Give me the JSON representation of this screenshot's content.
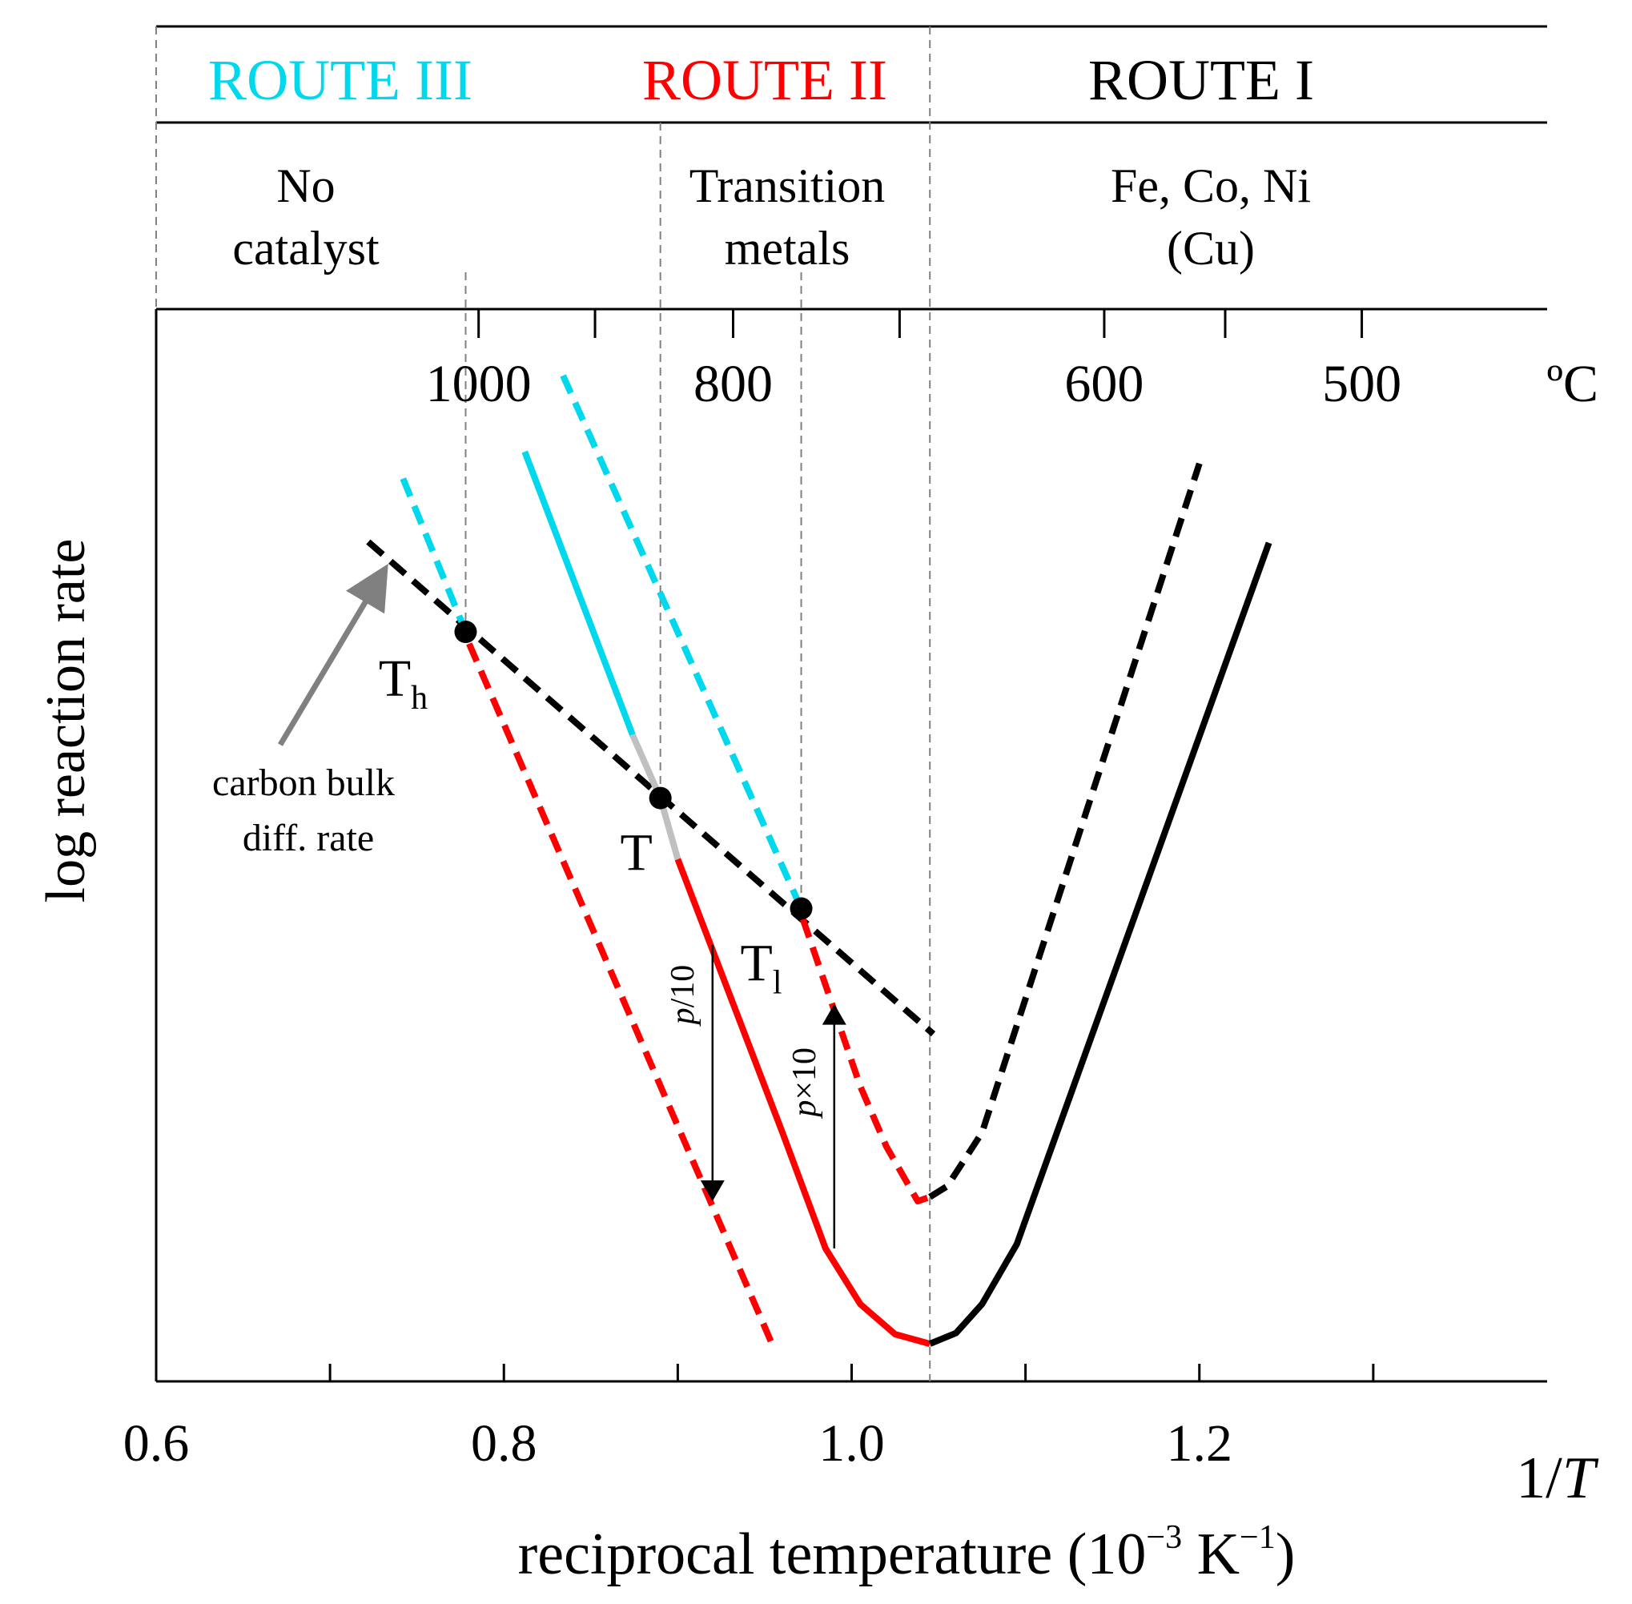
{
  "chart_data": {
    "type": "line",
    "ylabel": "log reaction rate",
    "xlabel": "reciprocal temperature (10",
    "xlabel_exp1": "−3",
    "xlabel_unit": " K",
    "xlabel_exp2": "−1",
    "xlabel_close": ")",
    "x_symbol_num": "1/",
    "x_symbol_var": "T",
    "xlim": [
      0.6,
      1.4
    ],
    "ylim": [
      0.0,
      1.0
    ],
    "x_ticks": [
      0.6,
      0.7,
      0.8,
      0.9,
      1.0,
      1.1,
      1.2,
      1.3
    ],
    "x_tick_labels": [
      {
        "value": 0.6,
        "label": "0.6"
      },
      {
        "value": 0.8,
        "label": "0.8"
      },
      {
        "value": 1.0,
        "label": "1.0"
      },
      {
        "value": 1.2,
        "label": "1.2"
      }
    ],
    "celsius_ticks": [
      1000,
      900,
      800,
      700,
      600,
      550,
      500
    ],
    "celsius_tick_labels": [
      {
        "celsius": 1000,
        "label": "1000"
      },
      {
        "celsius": 800,
        "label": "800"
      },
      {
        "celsius": 600,
        "label": "600"
      },
      {
        "celsius": 500,
        "label": "500"
      }
    ],
    "celsius_unit": "ºC",
    "routes": [
      {
        "label": "ROUTE III",
        "color": "#00d8ee",
        "from": 0.6,
        "to": 1.045
      },
      {
        "label": "ROUTE II",
        "color": "#ff0000",
        "from": 0.6,
        "to": 1.045
      },
      {
        "label": "ROUTE I",
        "color": "#000000",
        "from": 1.045,
        "to": 1.4
      }
    ],
    "regimes": [
      {
        "lines": [
          "No",
          "catalyst"
        ],
        "from": 0.6,
        "to": 0.89
      },
      {
        "lines": [
          "Transition",
          "metals"
        ],
        "from": 0.89,
        "to": 1.045
      },
      {
        "lines": [
          "Fe, Co, Ni",
          "(Cu)"
        ],
        "from": 1.045,
        "to": 1.4
      }
    ],
    "boundaries": [
      0.6,
      0.778,
      0.89,
      0.971,
      1.045
    ],
    "series": [
      {
        "name": "carbon bulk diffusion rate",
        "color": "#000000",
        "style": "dashed",
        "points": [
          [
            0.722,
            0.783
          ],
          [
            1.047,
            0.324
          ]
        ]
      },
      {
        "name": "route III, high",
        "color": "#00d8ee",
        "style": "dashed",
        "points": [
          [
            0.742,
            0.842
          ],
          [
            0.778,
            0.699
          ]
        ]
      },
      {
        "name": "route III, middle",
        "color": "#00d8ee",
        "style": "solid",
        "points": [
          [
            0.812,
            0.867
          ],
          [
            0.874,
            0.603
          ]
        ]
      },
      {
        "name": "route III, middle transition",
        "color": "#c0c0c0",
        "style": "solid",
        "points": [
          [
            0.874,
            0.603
          ],
          [
            0.89,
            0.544
          ]
        ]
      },
      {
        "name": "route III, low",
        "color": "#00d8ee",
        "style": "dashed",
        "points": [
          [
            0.834,
            0.938
          ],
          [
            0.971,
            0.441
          ]
        ]
      },
      {
        "name": "route II at p/10",
        "color": "#ff0000",
        "style": "dashed",
        "points": [
          [
            0.78,
            0.688
          ],
          [
            0.955,
            0.032
          ]
        ]
      },
      {
        "name": "route II transition",
        "color": "#c0c0c0",
        "style": "solid",
        "points": [
          [
            0.89,
            0.544
          ],
          [
            0.9,
            0.487
          ]
        ]
      },
      {
        "name": "route II",
        "color": "#ff0000",
        "style": "solid",
        "points": [
          [
            0.9,
            0.487
          ],
          [
            0.96,
            0.233
          ],
          [
            0.985,
            0.124
          ],
          [
            1.005,
            0.072
          ],
          [
            1.025,
            0.044
          ],
          [
            1.045,
            0.035
          ]
        ]
      },
      {
        "name": "route II at p×10",
        "color": "#ff0000",
        "style": "dashed",
        "points": [
          [
            0.972,
            0.431
          ],
          [
            1.005,
            0.275
          ],
          [
            1.02,
            0.219
          ],
          [
            1.038,
            0.168
          ],
          [
            1.045,
            0.172
          ]
        ]
      },
      {
        "name": "route I",
        "color": "#000000",
        "style": "solid",
        "points": [
          [
            1.045,
            0.035
          ],
          [
            1.06,
            0.045
          ],
          [
            1.075,
            0.072
          ],
          [
            1.095,
            0.128
          ],
          [
            1.24,
            0.782
          ]
        ]
      },
      {
        "name": "route I at p×10",
        "color": "#000000",
        "style": "dashed",
        "points": [
          [
            1.045,
            0.172
          ],
          [
            1.055,
            0.182
          ],
          [
            1.075,
            0.232
          ],
          [
            1.2,
            0.856
          ]
        ]
      }
    ],
    "markers": [
      {
        "label": "T",
        "sub": "h",
        "x": 0.778,
        "y": 0.699
      },
      {
        "label": "T",
        "sub": "",
        "x": 0.89,
        "y": 0.544
      },
      {
        "label": "T",
        "sub": "l",
        "x": 0.971,
        "y": 0.441
      }
    ],
    "annotations": {
      "diffusion_label": [
        "carbon bulk",
        "diff. rate"
      ],
      "pressure_down": {
        "label_var": "p",
        "label_rest": "/10",
        "x": 0.92,
        "from": 0.407,
        "to": 0.168
      },
      "pressure_up": {
        "label_var": "p",
        "label_rest": "×10",
        "x": 0.99,
        "from": 0.124,
        "to": 0.352
      }
    }
  }
}
